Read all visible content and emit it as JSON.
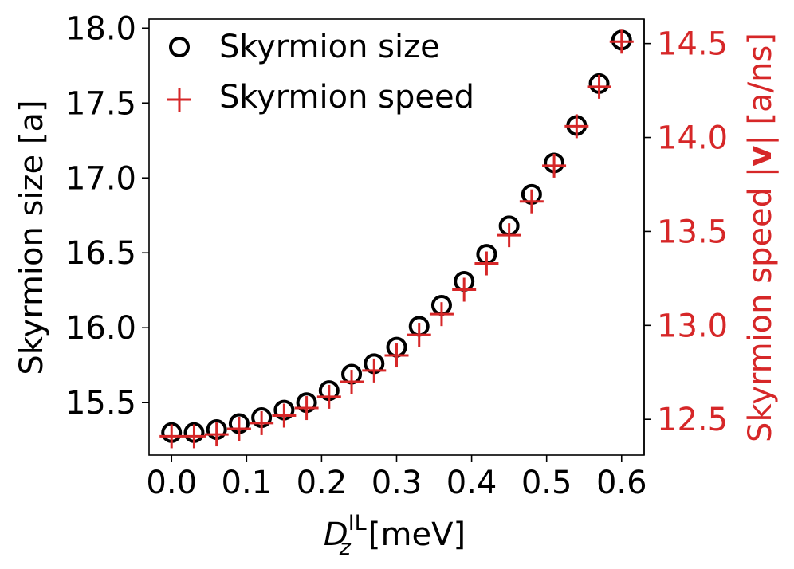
{
  "chart_data": {
    "type": "scatter",
    "x": [
      0.0,
      0.03,
      0.06,
      0.09,
      0.12,
      0.15,
      0.18,
      0.21,
      0.24,
      0.27,
      0.3,
      0.33,
      0.36,
      0.39,
      0.42,
      0.45,
      0.48,
      0.51,
      0.54,
      0.57,
      0.6
    ],
    "series": [
      {
        "name": "Skyrmion size",
        "axis": "left",
        "marker": "circle",
        "color": "#000000",
        "values": [
          15.3,
          15.3,
          15.32,
          15.36,
          15.4,
          15.45,
          15.5,
          15.58,
          15.69,
          15.76,
          15.87,
          16.01,
          16.15,
          16.31,
          16.49,
          16.68,
          16.89,
          17.1,
          17.35,
          17.63,
          17.92
        ]
      },
      {
        "name": "Skyrmion speed",
        "axis": "right",
        "marker": "plus",
        "color": "#d62728",
        "values": [
          12.41,
          12.41,
          12.42,
          12.45,
          12.48,
          12.52,
          12.56,
          12.62,
          12.7,
          12.76,
          12.84,
          12.95,
          13.06,
          13.19,
          13.33,
          13.48,
          13.66,
          13.85,
          14.06,
          14.27,
          14.51
        ]
      }
    ],
    "xlabel_main": "D",
    "xlabel_sub": "z",
    "xlabel_sup": "IL",
    "xlabel_unit": "[meV]",
    "ylabel_left": "Skyrmion size [a]",
    "ylabel_right_prefix": "Skyrmion speed |",
    "ylabel_right_bold": "v",
    "ylabel_right_suffix": "| [a/ns]",
    "xlim": [
      -0.03,
      0.63
    ],
    "ylim_left": [
      15.15,
      18.06
    ],
    "ylim_right": [
      12.31,
      14.63
    ],
    "xticks": [
      0.0,
      0.1,
      0.2,
      0.3,
      0.4,
      0.5,
      0.6
    ],
    "xtick_labels": [
      "0.0",
      "0.1",
      "0.2",
      "0.3",
      "0.4",
      "0.5",
      "0.6"
    ],
    "yticks_left": [
      15.5,
      16.0,
      16.5,
      17.0,
      17.5,
      18.0
    ],
    "ytick_labels_left": [
      "15.5",
      "16.0",
      "16.5",
      "17.0",
      "17.5",
      "18.0"
    ],
    "yticks_right": [
      12.5,
      13.0,
      13.5,
      14.0,
      14.5
    ],
    "ytick_labels_right": [
      "12.5",
      "13.0",
      "13.5",
      "14.0",
      "14.5"
    ],
    "legend": {
      "position": "top-left",
      "entries": [
        "Skyrmion size",
        "Skyrmion speed"
      ]
    },
    "grid": false,
    "right_axis_color": "#d62728"
  }
}
